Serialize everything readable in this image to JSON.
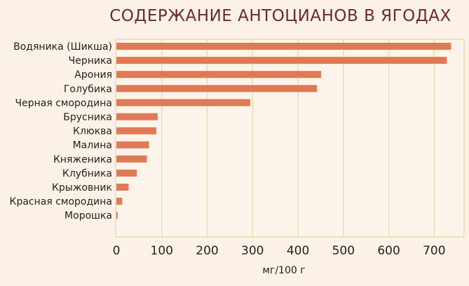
{
  "chart_data": {
    "type": "bar",
    "orientation": "horizontal",
    "title": "СОДЕРЖАНИЕ АНТОЦИАНОВ В ЯГОДАХ",
    "xlabel": "мг/100 г",
    "ylabel": "",
    "xlim": [
      0,
      760
    ],
    "xticks": [
      0,
      100,
      200,
      300,
      400,
      500,
      600,
      700
    ],
    "grid": "vertical",
    "categories": [
      "Водяника (Шикша)",
      "Черника",
      "Арония",
      "Голубика",
      "Черная смородина",
      "Брусника",
      "Клюква",
      "Малина",
      "Княженика",
      "Клубника",
      "Крыжовник",
      "Красная смородина",
      "Морошка"
    ],
    "values": [
      737,
      728,
      451,
      442,
      295,
      91,
      88,
      72,
      67,
      45,
      27,
      13,
      3
    ],
    "colors": {
      "bar": "#df7a56",
      "grid": "#e6dfb3",
      "background": "#fbf1e6",
      "plot_background": "#fcf4ea",
      "title": "#6b2a2a"
    }
  }
}
